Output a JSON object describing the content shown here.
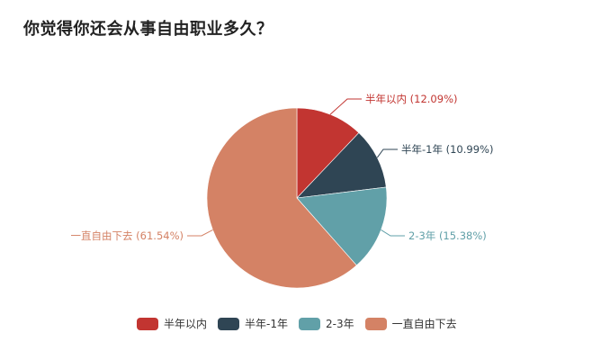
{
  "chart_data": {
    "type": "pie",
    "title": "你觉得你还会从事自由职业多久？",
    "categories": [
      "半年以内",
      "半年-1年",
      "2-3年",
      "一直自由下去"
    ],
    "values": [
      12.09,
      10.99,
      15.38,
      61.54
    ],
    "unit": "%",
    "colors": [
      "#c23531",
      "#2f4554",
      "#61a0a8",
      "#d48265"
    ],
    "labels": [
      "半年以内 (12.09%)",
      "半年-1年 (10.99%)",
      "2-3年 (15.38%)",
      "一直自由下去 (61.54%)"
    ],
    "legend_position": "bottom",
    "start_angle": "top, clockwise"
  },
  "title": "你觉得你还会从事自由职业多久？",
  "legend": [
    {
      "label": "半年以内",
      "color": "#c23531"
    },
    {
      "label": "半年-1年",
      "color": "#2f4554"
    },
    {
      "label": "2-3年",
      "color": "#61a0a8"
    },
    {
      "label": "一直自由下去",
      "color": "#d48265"
    }
  ]
}
